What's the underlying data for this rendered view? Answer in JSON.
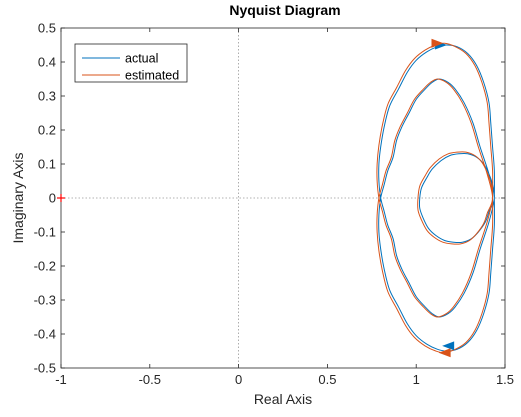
{
  "chart_data": {
    "type": "line",
    "title": "Nyquist Diagram",
    "xlabel": "Real Axis",
    "ylabel": "Imaginary Axis",
    "xlim": [
      -1,
      1.5
    ],
    "ylim": [
      -0.5,
      0.5
    ],
    "xticks": [
      -1,
      -0.5,
      0,
      0.5,
      1,
      1.5
    ],
    "xtick_labels": [
      "-1",
      "-0.5",
      "0",
      "0.5",
      "1",
      "1.5"
    ],
    "yticks": [
      -0.5,
      -0.4,
      -0.3,
      -0.2,
      -0.1,
      0,
      0.1,
      0.2,
      0.3,
      0.4,
      0.5
    ],
    "ytick_labels": [
      "-0.5",
      "-0.4",
      "-0.3",
      "-0.2",
      "-0.1",
      "0",
      "0.1",
      "0.2",
      "0.3",
      "0.4",
      "0.5"
    ],
    "grid": false,
    "zero_lines": true,
    "critical_point": {
      "x": -1,
      "y": 0,
      "marker": "+",
      "color": "#ff0000"
    },
    "legend_position": "top-left",
    "series": [
      {
        "name": "actual",
        "color": "#0072bd",
        "x": [
          1.44,
          1.44,
          1.43,
          1.42,
          1.41,
          1.38,
          1.34,
          1.29,
          1.23,
          1.17,
          1.12,
          1.06,
          1.0,
          0.95,
          0.9,
          0.85,
          0.82,
          0.8,
          0.79,
          0.79,
          0.8,
          0.82,
          0.84,
          0.87,
          0.89,
          0.92,
          0.96,
          1.0,
          1.05,
          1.09,
          1.13,
          1.18,
          1.22,
          1.27,
          1.32,
          1.36,
          1.41,
          1.44,
          1.43,
          1.41,
          1.38,
          1.34,
          1.29,
          1.24,
          1.19,
          1.14,
          1.09,
          1.06,
          1.03,
          1.02,
          1.02,
          1.04,
          1.07,
          1.11,
          1.16,
          1.21,
          1.26,
          1.31,
          1.35,
          1.39,
          1.41,
          1.44,
          1.41,
          1.36,
          1.32,
          1.27,
          1.22,
          1.18,
          1.13,
          1.09,
          1.05,
          1.0,
          0.96,
          0.92,
          0.89,
          0.87,
          0.84,
          0.82,
          0.8,
          0.79,
          0.79,
          0.8,
          0.82,
          0.85,
          0.9,
          0.95,
          1.0,
          1.06,
          1.12,
          1.17,
          1.23,
          1.29,
          1.34,
          1.38,
          1.41,
          1.42,
          1.43,
          1.44,
          1.44
        ],
        "y": [
          0.0,
          0.08,
          0.15,
          0.22,
          0.28,
          0.34,
          0.39,
          0.425,
          0.445,
          0.45,
          0.445,
          0.43,
          0.405,
          0.37,
          0.32,
          0.27,
          0.21,
          0.15,
          0.1,
          0.05,
          0.0,
          -0.04,
          -0.08,
          -0.12,
          -0.17,
          -0.21,
          -0.25,
          -0.29,
          -0.32,
          -0.34,
          -0.35,
          -0.34,
          -0.32,
          -0.28,
          -0.22,
          -0.15,
          -0.07,
          0.0,
          0.04,
          0.07,
          0.1,
          0.12,
          0.13,
          0.13,
          0.125,
          0.11,
          0.085,
          0.06,
          0.03,
          0.0,
          -0.03,
          -0.06,
          -0.09,
          -0.11,
          -0.125,
          -0.13,
          -0.13,
          -0.12,
          -0.1,
          -0.07,
          -0.04,
          0.0,
          0.07,
          0.15,
          0.22,
          0.28,
          0.32,
          0.34,
          0.35,
          0.34,
          0.32,
          0.29,
          0.25,
          0.21,
          0.17,
          0.12,
          0.08,
          0.04,
          0.0,
          -0.05,
          -0.1,
          -0.15,
          -0.21,
          -0.27,
          -0.32,
          -0.37,
          -0.405,
          -0.43,
          -0.445,
          -0.45,
          -0.445,
          -0.425,
          -0.39,
          -0.34,
          -0.28,
          -0.22,
          -0.15,
          -0.08,
          0.0
        ]
      },
      {
        "name": "estimated",
        "color": "#d95319",
        "x": [
          1.43,
          1.43,
          1.42,
          1.41,
          1.4,
          1.37,
          1.33,
          1.28,
          1.22,
          1.16,
          1.11,
          1.05,
          0.99,
          0.94,
          0.89,
          0.84,
          0.81,
          0.79,
          0.78,
          0.78,
          0.79,
          0.81,
          0.83,
          0.86,
          0.88,
          0.91,
          0.95,
          0.99,
          1.04,
          1.08,
          1.12,
          1.17,
          1.21,
          1.26,
          1.31,
          1.35,
          1.4,
          1.43,
          1.42,
          1.4,
          1.37,
          1.33,
          1.28,
          1.23,
          1.18,
          1.13,
          1.08,
          1.05,
          1.02,
          1.01,
          1.01,
          1.03,
          1.06,
          1.1,
          1.15,
          1.2,
          1.25,
          1.3,
          1.34,
          1.38,
          1.4,
          1.43,
          1.4,
          1.35,
          1.31,
          1.26,
          1.21,
          1.17,
          1.12,
          1.08,
          1.04,
          0.99,
          0.95,
          0.91,
          0.88,
          0.86,
          0.83,
          0.81,
          0.79,
          0.78,
          0.78,
          0.79,
          0.81,
          0.84,
          0.89,
          0.94,
          0.99,
          1.05,
          1.11,
          1.16,
          1.22,
          1.28,
          1.33,
          1.37,
          1.4,
          1.41,
          1.42,
          1.43,
          1.43
        ],
        "y": [
          0.0,
          0.08,
          0.15,
          0.22,
          0.28,
          0.34,
          0.39,
          0.425,
          0.445,
          0.455,
          0.45,
          0.435,
          0.41,
          0.375,
          0.325,
          0.275,
          0.215,
          0.155,
          0.1,
          0.05,
          0.0,
          -0.04,
          -0.08,
          -0.12,
          -0.17,
          -0.21,
          -0.25,
          -0.29,
          -0.32,
          -0.34,
          -0.35,
          -0.34,
          -0.32,
          -0.28,
          -0.22,
          -0.15,
          -0.07,
          0.0,
          0.045,
          0.075,
          0.105,
          0.125,
          0.135,
          0.135,
          0.13,
          0.115,
          0.09,
          0.065,
          0.035,
          0.0,
          -0.035,
          -0.065,
          -0.095,
          -0.115,
          -0.13,
          -0.135,
          -0.135,
          -0.125,
          -0.105,
          -0.075,
          -0.045,
          0.0,
          0.07,
          0.15,
          0.22,
          0.28,
          0.32,
          0.34,
          0.35,
          0.34,
          0.32,
          0.29,
          0.25,
          0.21,
          0.17,
          0.12,
          0.08,
          0.04,
          0.0,
          -0.05,
          -0.1,
          -0.155,
          -0.215,
          -0.275,
          -0.325,
          -0.375,
          -0.41,
          -0.435,
          -0.45,
          -0.455,
          -0.445,
          -0.425,
          -0.39,
          -0.34,
          -0.28,
          -0.22,
          -0.15,
          -0.08,
          0.0
        ]
      }
    ],
    "direction_arrows": [
      {
        "series": "actual",
        "x": 1.14,
        "y": 0.45,
        "dir": "right"
      },
      {
        "series": "actual",
        "x": 1.18,
        "y": -0.435,
        "dir": "left"
      },
      {
        "series": "estimated",
        "x": 1.12,
        "y": 0.455,
        "dir": "right"
      },
      {
        "series": "estimated",
        "x": 1.16,
        "y": -0.455,
        "dir": "left"
      }
    ]
  }
}
